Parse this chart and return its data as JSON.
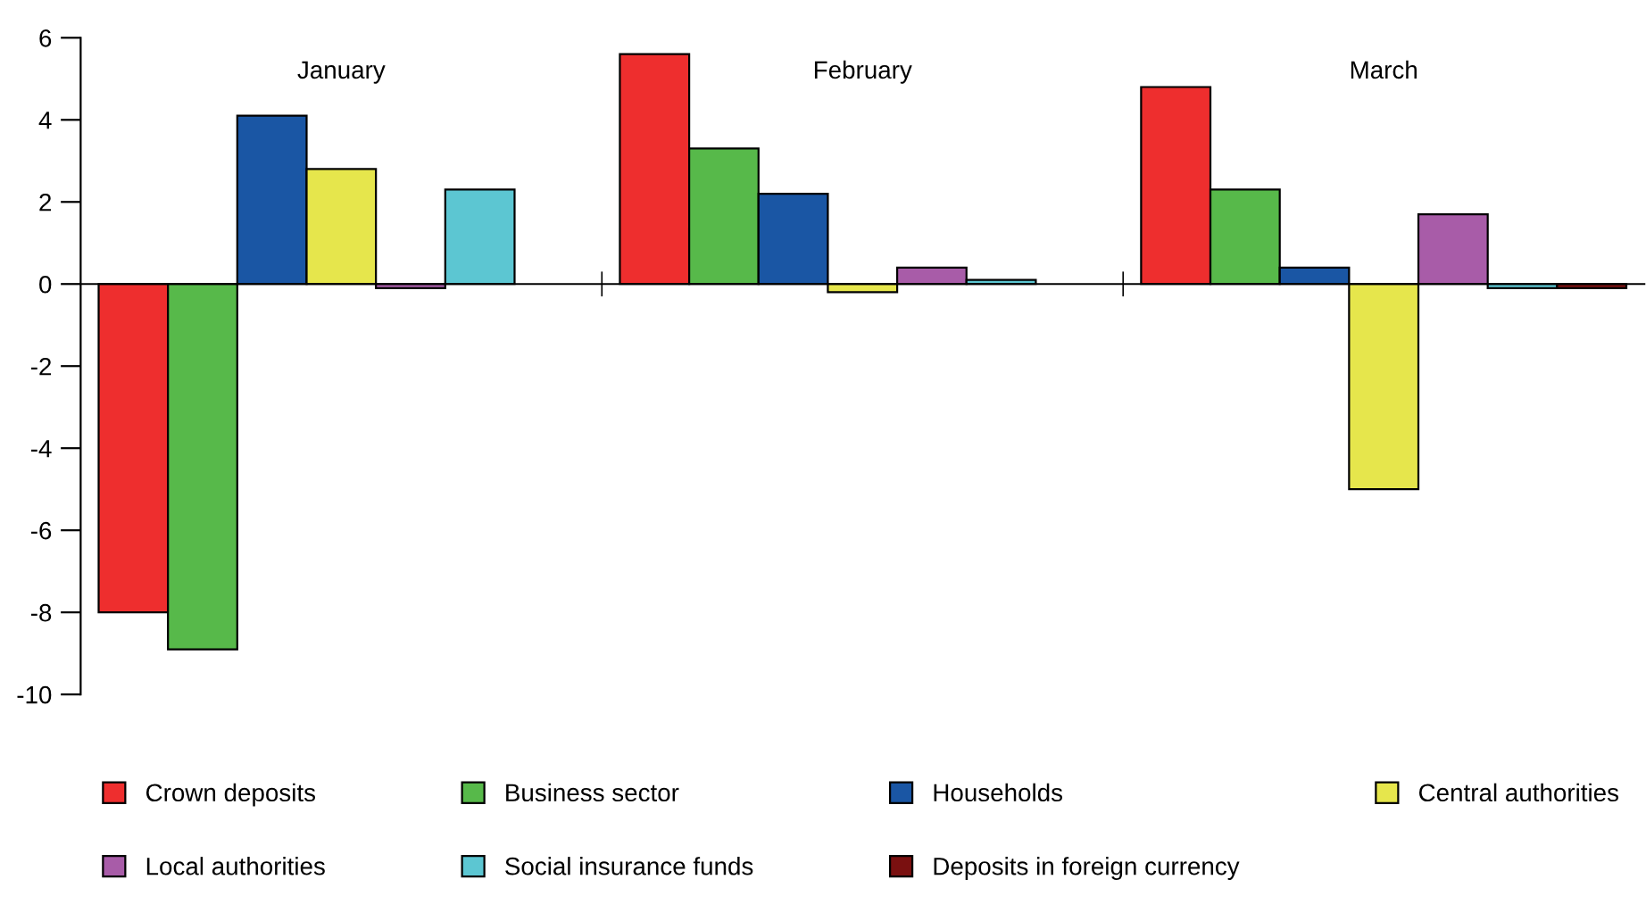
{
  "chart_data": {
    "type": "bar",
    "categories": [
      "January",
      "February",
      "March"
    ],
    "series": [
      {
        "name": "Crown deposits",
        "color": "#ee2e2e",
        "values": [
          -8.0,
          5.6,
          4.8
        ]
      },
      {
        "name": "Business sector",
        "color": "#57b94a",
        "values": [
          -8.9,
          3.3,
          2.3
        ]
      },
      {
        "name": "Households",
        "color": "#1a56a4",
        "values": [
          4.1,
          2.2,
          0.4
        ]
      },
      {
        "name": "Central authorities",
        "color": "#e6e64c",
        "values": [
          2.8,
          -0.2,
          -5.0
        ]
      },
      {
        "name": "Local authorities",
        "color": "#a85ca8",
        "values": [
          -0.1,
          0.4,
          1.7
        ]
      },
      {
        "name": "Social insurance funds",
        "color": "#5cc6d2",
        "values": [
          2.3,
          0.1,
          -0.1
        ]
      },
      {
        "name": "Deposits in foreign currency",
        "color": "#7a1010",
        "values": [
          null,
          null,
          -0.1
        ]
      }
    ],
    "ylim": [
      -10,
      6
    ],
    "yticks": [
      -10,
      -8,
      -6,
      -4,
      -2,
      0,
      2,
      4,
      6
    ],
    "legend": "bottom"
  }
}
